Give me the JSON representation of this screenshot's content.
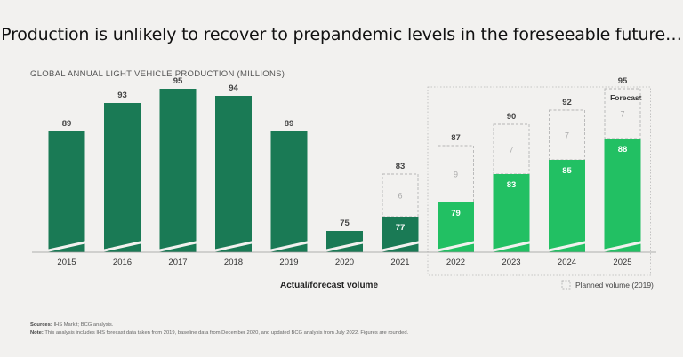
{
  "headline": "Production is unlikely to recover to prepandemic levels in the foreseeable future…",
  "chart_data": {
    "type": "bar",
    "title": "GLOBAL ANNUAL LIGHT VEHICLE PRODUCTION (MILLIONS)",
    "categories": [
      "2015",
      "2016",
      "2017",
      "2018",
      "2019",
      "2020",
      "2021",
      "2022",
      "2023",
      "2024",
      "2025"
    ],
    "series": [
      {
        "name": "Actual/forecast volume",
        "values": [
          89,
          93,
          95,
          94,
          89,
          75,
          77,
          79,
          83,
          85,
          88
        ],
        "inner_labels": [
          null,
          null,
          null,
          null,
          null,
          null,
          "77",
          "79",
          "83",
          "85",
          "88"
        ]
      },
      {
        "name": "Planned volume (2019)",
        "values": [
          null,
          null,
          null,
          null,
          null,
          null,
          83,
          87,
          90,
          92,
          95
        ],
        "gap_labels": [
          null,
          null,
          null,
          null,
          null,
          null,
          "6",
          "9",
          "7",
          "7",
          "7"
        ]
      }
    ],
    "top_labels": [
      "89",
      "93",
      "95",
      "94",
      "89",
      "75",
      "83",
      "87",
      "90",
      "92",
      "95"
    ],
    "axis_break": true,
    "forecast_label": "Forecast",
    "forecast_start": "2022",
    "xlabel": "Actual/forecast volume",
    "legend_label": "Planned volume (2019)",
    "ylim": [
      72,
      100
    ],
    "colors": {
      "actual": "#1a7a55",
      "forecast": "#22c063",
      "planned_border": "#b5b5b5",
      "gap_text": "#aaaaaa",
      "axis": "#999999"
    }
  },
  "sources": {
    "sources_label": "Sources:",
    "sources_text": "IHS Markit; BCG analysis.",
    "note_label": "Note:",
    "note_text": "This analysis includes IHS forecast data taken from 2019, baseline data from December 2020, and updated BCG analysis from July 2022. Figures are rounded."
  }
}
